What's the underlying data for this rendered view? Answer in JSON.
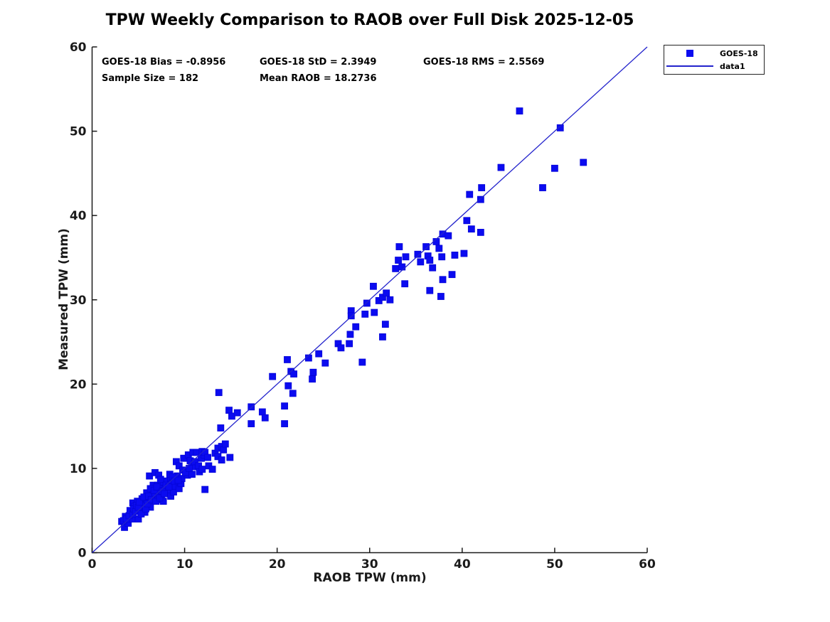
{
  "title": "TPW Weekly Comparison to RAOB over Full Disk 2025-12-05",
  "annotations": {
    "bias": "GOES-18 Bias = -0.8956",
    "std": "GOES-18 StD = 2.3949",
    "rms": "GOES-18 RMS = 2.5569",
    "sample_size": "Sample Size = 182",
    "mean_raob": "Mean RAOB = 18.2736"
  },
  "legend": {
    "items": [
      {
        "label": "GOES-18",
        "icon": "square-marker"
      },
      {
        "label": "data1",
        "icon": "line-segment"
      }
    ]
  },
  "colors": {
    "marker": "#0b0bf0",
    "marker_edge": "#0505d8",
    "line": "#2323cc",
    "axis": "#1a1a1a",
    "text": "#000000",
    "background": "#ffffff"
  },
  "chart_data": {
    "type": "scatter",
    "title": "TPW Weekly Comparison to RAOB over Full Disk 2025-12-05",
    "xlabel": "RAOB TPW (mm)",
    "ylabel": "Measured TPW (mm)",
    "xlim": [
      0,
      60
    ],
    "ylim": [
      0,
      60
    ],
    "xticks": [
      0,
      10,
      20,
      30,
      40,
      50,
      60
    ],
    "yticks": [
      0,
      10,
      20,
      30,
      40,
      50,
      60
    ],
    "grid": false,
    "legend_position": "top-right-outside",
    "series": [
      {
        "name": "GOES-18",
        "type": "scatter",
        "marker": "filled-square",
        "points": [
          [
            3.2,
            3.7
          ],
          [
            3.5,
            3.0
          ],
          [
            3.6,
            4.3
          ],
          [
            3.9,
            3.5
          ],
          [
            4.3,
            4.0
          ],
          [
            4.4,
            5.9
          ],
          [
            4.6,
            5.5
          ],
          [
            4.9,
            6.1
          ],
          [
            5.0,
            4.0
          ],
          [
            5.2,
            5.8
          ],
          [
            5.3,
            5.3
          ],
          [
            5.4,
            6.4
          ],
          [
            5.5,
            5.7
          ],
          [
            5.7,
            4.8
          ],
          [
            5.9,
            6.3
          ],
          [
            5.9,
            7.1
          ],
          [
            6.2,
            6.1
          ],
          [
            6.2,
            9.1
          ],
          [
            6.3,
            5.4
          ],
          [
            6.5,
            7.1
          ],
          [
            6.6,
            6.9
          ],
          [
            6.6,
            8.0
          ],
          [
            6.8,
            6.7
          ],
          [
            6.8,
            9.5
          ],
          [
            7.1,
            6.3
          ],
          [
            7.1,
            8.0
          ],
          [
            7.2,
            7.2
          ],
          [
            7.2,
            9.2
          ],
          [
            7.5,
            6.8
          ],
          [
            7.5,
            8.1
          ],
          [
            7.7,
            6.1
          ],
          [
            7.7,
            8.4
          ],
          [
            7.9,
            7.6
          ],
          [
            8.1,
            8.5
          ],
          [
            8.2,
            7.2
          ],
          [
            8.5,
            6.7
          ],
          [
            8.5,
            8.8
          ],
          [
            8.6,
            8.2
          ],
          [
            8.8,
            7.2
          ],
          [
            9.0,
            7.9
          ],
          [
            9.1,
            10.8
          ],
          [
            9.2,
            9.1
          ],
          [
            9.4,
            7.6
          ],
          [
            9.4,
            10.3
          ],
          [
            9.6,
            8.2
          ],
          [
            9.7,
            8.8
          ],
          [
            9.8,
            9.8
          ],
          [
            9.9,
            11.2
          ],
          [
            10.3,
            9.2
          ],
          [
            10.4,
            11.6
          ],
          [
            10.6,
            10.9
          ],
          [
            10.8,
            9.3
          ],
          [
            10.9,
            10.2
          ],
          [
            10.9,
            11.9
          ],
          [
            11.1,
            10.8
          ],
          [
            11.3,
            11.9
          ],
          [
            11.5,
            10.3
          ],
          [
            11.6,
            9.6
          ],
          [
            11.8,
            11.2
          ],
          [
            11.9,
            9.9
          ],
          [
            11.9,
            12.0
          ],
          [
            12.1,
            11.6
          ],
          [
            12.2,
            7.5
          ],
          [
            12.2,
            11.9
          ],
          [
            12.5,
            11.3
          ],
          [
            12.6,
            10.3
          ],
          [
            13.0,
            9.9
          ],
          [
            13.3,
            11.8
          ],
          [
            13.6,
            11.4
          ],
          [
            13.6,
            12.4
          ],
          [
            13.7,
            19.0
          ],
          [
            14.0,
            11.0
          ],
          [
            14.0,
            12.6
          ],
          [
            14.2,
            12.2
          ],
          [
            14.4,
            12.9
          ],
          [
            14.9,
            11.3
          ],
          [
            13.9,
            14.8
          ],
          [
            14.8,
            16.9
          ],
          [
            15.1,
            16.2
          ],
          [
            15.7,
            16.6
          ],
          [
            3.4,
            3.8
          ],
          [
            3.7,
            4.0
          ],
          [
            4.0,
            4.4
          ],
          [
            4.1,
            5.0
          ],
          [
            4.4,
            4.6
          ],
          [
            4.5,
            5.2
          ],
          [
            4.7,
            4.9
          ],
          [
            4.8,
            5.6
          ],
          [
            5.0,
            5.4
          ],
          [
            5.1,
            6.0
          ],
          [
            5.3,
            4.6
          ],
          [
            5.6,
            6.6
          ],
          [
            5.8,
            5.2
          ],
          [
            6.0,
            5.8
          ],
          [
            6.1,
            6.7
          ],
          [
            6.3,
            7.6
          ],
          [
            6.4,
            6.3
          ],
          [
            6.7,
            7.4
          ],
          [
            6.9,
            6.1
          ],
          [
            7.0,
            7.8
          ],
          [
            7.3,
            6.5
          ],
          [
            7.4,
            8.7
          ],
          [
            7.6,
            7.3
          ],
          [
            7.8,
            7.0
          ],
          [
            8.0,
            8.0
          ],
          [
            8.3,
            7.8
          ],
          [
            8.4,
            9.3
          ],
          [
            8.7,
            9.0
          ],
          [
            8.9,
            8.5
          ],
          [
            9.3,
            8.6
          ],
          [
            10.1,
            9.5
          ],
          [
            10.5,
            10.0
          ],
          [
            17.2,
            17.3
          ],
          [
            17.2,
            15.3
          ],
          [
            18.4,
            16.7
          ],
          [
            18.7,
            16.0
          ],
          [
            19.5,
            20.9
          ],
          [
            20.8,
            17.4
          ],
          [
            20.8,
            15.3
          ],
          [
            21.1,
            22.9
          ],
          [
            21.2,
            19.8
          ],
          [
            21.5,
            21.5
          ],
          [
            21.7,
            18.9
          ],
          [
            21.8,
            21.2
          ],
          [
            23.4,
            23.1
          ],
          [
            23.8,
            20.6
          ],
          [
            23.9,
            21.4
          ],
          [
            24.5,
            23.6
          ],
          [
            25.2,
            22.5
          ],
          [
            26.6,
            24.8
          ],
          [
            26.9,
            24.3
          ],
          [
            27.8,
            24.8
          ],
          [
            27.9,
            25.9
          ],
          [
            28.0,
            28.7
          ],
          [
            28.0,
            28.1
          ],
          [
            28.5,
            26.8
          ],
          [
            29.2,
            22.6
          ],
          [
            29.5,
            28.3
          ],
          [
            29.7,
            29.6
          ],
          [
            30.4,
            31.6
          ],
          [
            30.5,
            28.5
          ],
          [
            31.0,
            29.9
          ],
          [
            31.4,
            30.3
          ],
          [
            31.4,
            25.6
          ],
          [
            31.7,
            27.1
          ],
          [
            31.8,
            30.8
          ],
          [
            32.2,
            30.0
          ],
          [
            33.8,
            31.9
          ],
          [
            32.8,
            33.7
          ],
          [
            33.1,
            34.7
          ],
          [
            33.2,
            36.3
          ],
          [
            33.5,
            33.9
          ],
          [
            33.9,
            35.1
          ],
          [
            35.2,
            35.4
          ],
          [
            35.5,
            34.5
          ],
          [
            36.1,
            36.3
          ],
          [
            36.3,
            35.2
          ],
          [
            36.5,
            34.7
          ],
          [
            36.5,
            31.1
          ],
          [
            36.8,
            33.8
          ],
          [
            37.2,
            36.9
          ],
          [
            37.5,
            36.1
          ],
          [
            37.7,
            30.4
          ],
          [
            37.8,
            35.1
          ],
          [
            37.9,
            37.8
          ],
          [
            37.9,
            32.4
          ],
          [
            38.5,
            37.6
          ],
          [
            38.9,
            33.0
          ],
          [
            39.2,
            35.3
          ],
          [
            40.2,
            35.5
          ],
          [
            40.5,
            39.4
          ],
          [
            41.0,
            38.4
          ],
          [
            42.0,
            38.0
          ],
          [
            40.8,
            42.5
          ],
          [
            42.0,
            41.9
          ],
          [
            42.1,
            43.3
          ],
          [
            44.2,
            45.7
          ],
          [
            46.2,
            52.4
          ],
          [
            48.7,
            43.3
          ],
          [
            50.0,
            45.6
          ],
          [
            50.6,
            50.4
          ],
          [
            53.1,
            46.3
          ]
        ]
      },
      {
        "name": "data1",
        "type": "line",
        "points": [
          [
            0,
            0
          ],
          [
            60,
            60
          ]
        ]
      }
    ]
  }
}
